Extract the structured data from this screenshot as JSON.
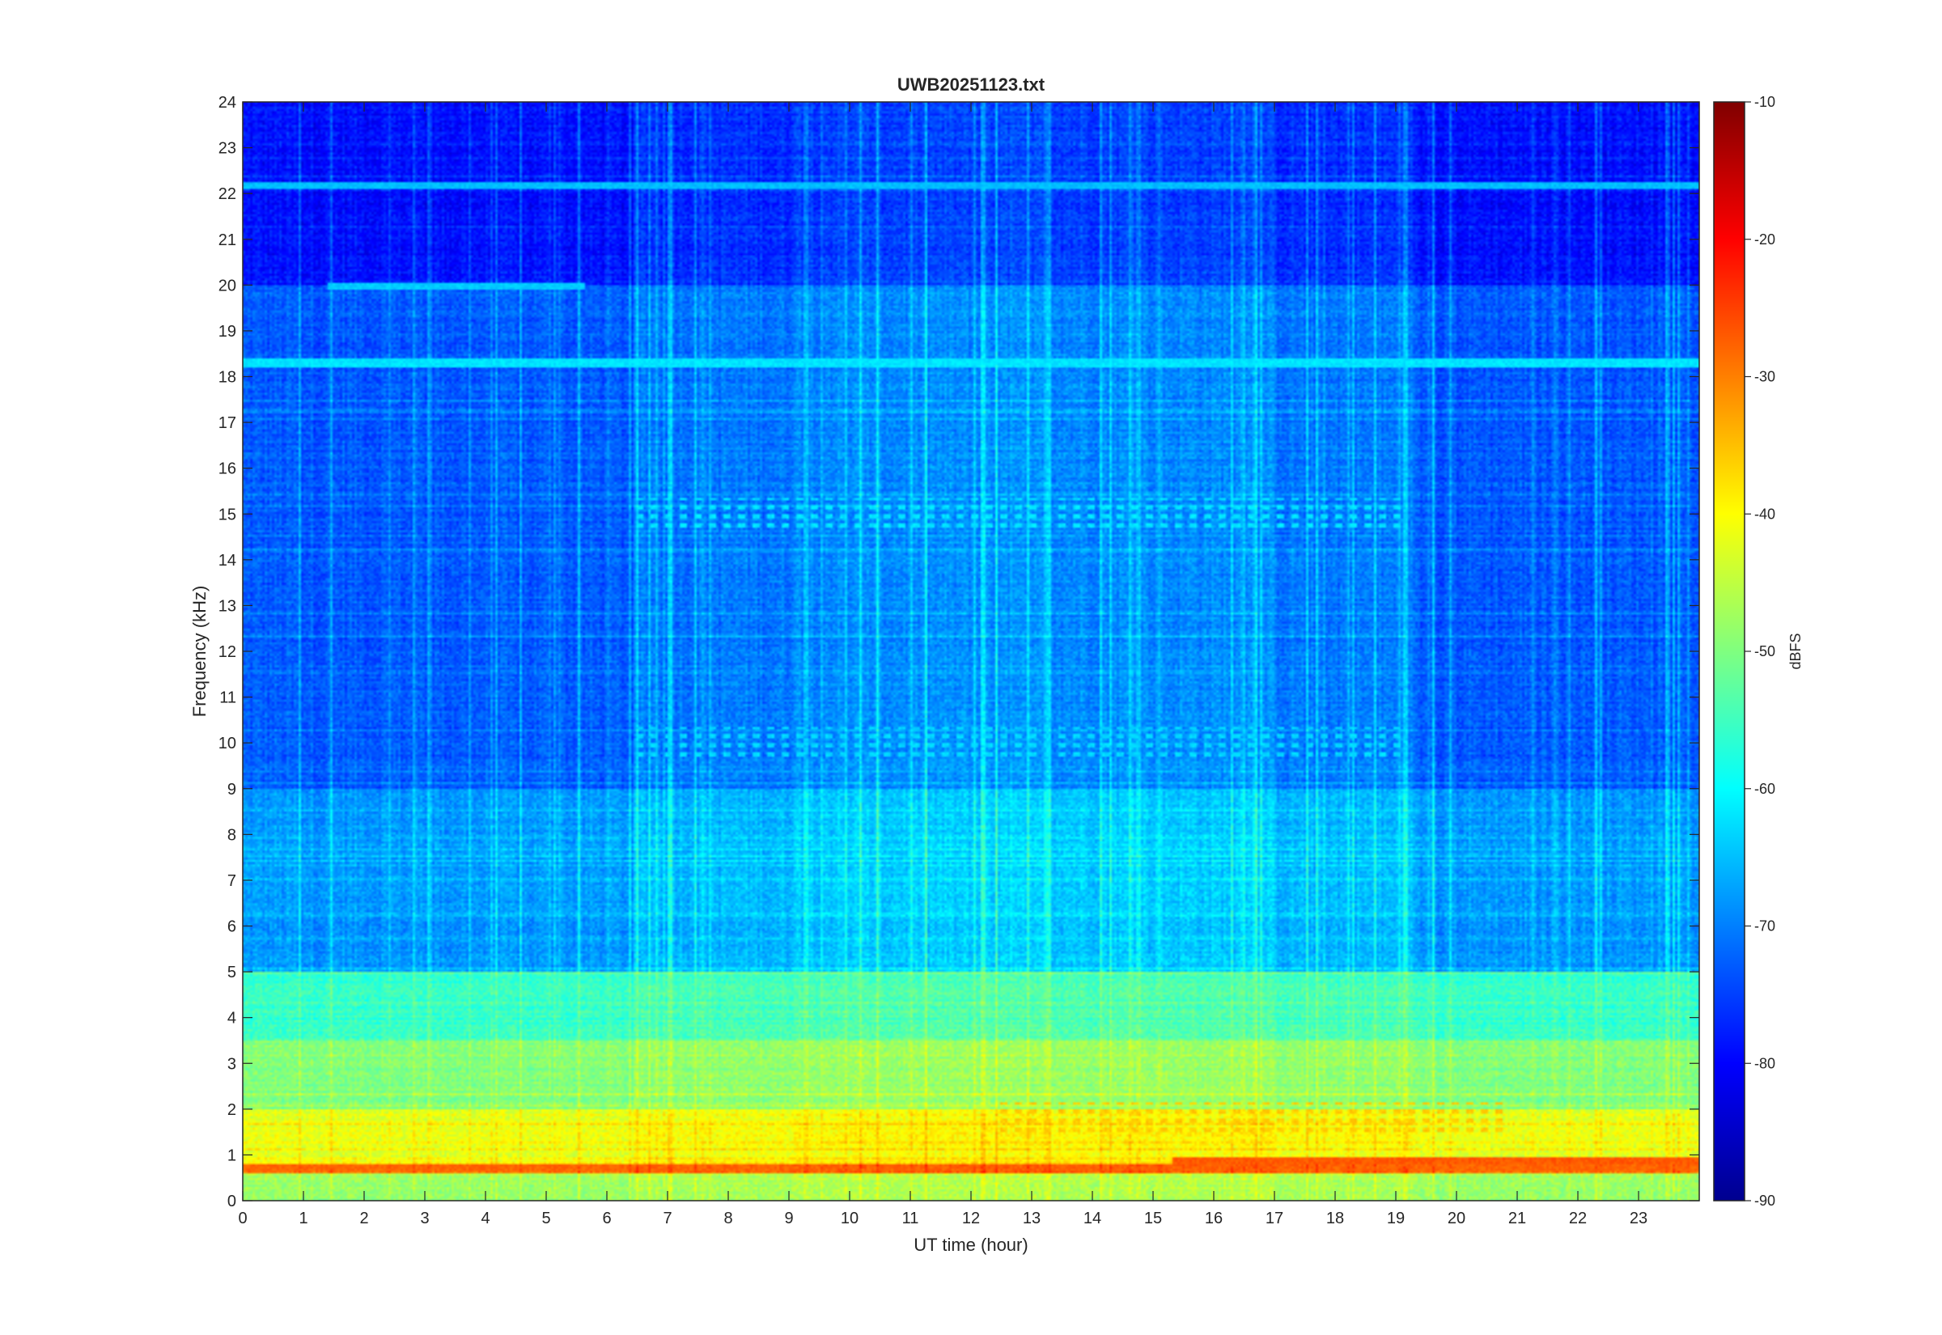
{
  "chart_data": {
    "type": "heatmap",
    "title": "UWB20251123.txt",
    "xlabel": "UT time (hour)",
    "ylabel": "Frequency (kHz)",
    "xlim": [
      0,
      24
    ],
    "ylim": [
      0,
      24
    ],
    "x_ticks": [
      "0",
      "1",
      "2",
      "3",
      "4",
      "5",
      "6",
      "7",
      "8",
      "9",
      "10",
      "11",
      "12",
      "13",
      "14",
      "15",
      "16",
      "17",
      "18",
      "19",
      "20",
      "21",
      "22",
      "23"
    ],
    "y_ticks": [
      "0",
      "1",
      "2",
      "3",
      "4",
      "5",
      "6",
      "7",
      "8",
      "9",
      "10",
      "11",
      "12",
      "13",
      "14",
      "15",
      "16",
      "17",
      "18",
      "19",
      "20",
      "21",
      "22",
      "23",
      "24"
    ],
    "colormap": "jet",
    "colorbar": {
      "label": "dBFS",
      "range": [
        -90,
        -10
      ],
      "ticks": [
        "-10",
        "-20",
        "-30",
        "-40",
        "-50",
        "-60",
        "-70",
        "-80",
        "-90"
      ]
    },
    "background_level_dbfs": [
      {
        "freq_khz": [
          0,
          0.6
        ],
        "level": -48
      },
      {
        "freq_khz": [
          0.6,
          0.8
        ],
        "level": -30
      },
      {
        "freq_khz": [
          0.8,
          2.0
        ],
        "level": -42
      },
      {
        "freq_khz": [
          2.0,
          3.5
        ],
        "level": -50
      },
      {
        "freq_khz": [
          3.5,
          5.0
        ],
        "level": -56
      },
      {
        "freq_khz": [
          5.0,
          9.0
        ],
        "level": -68
      },
      {
        "freq_khz": [
          9.0,
          20.0
        ],
        "level": -73
      },
      {
        "freq_khz": [
          20.0,
          24.0
        ],
        "level": -79
      }
    ],
    "narrowband_lines": [
      {
        "freq_khz": 22.2,
        "level": -65
      },
      {
        "freq_khz": 20.0,
        "level": -64,
        "hours": [
          1.4,
          5.6
        ]
      },
      {
        "freq_khz": 18.3,
        "level": -62
      },
      {
        "freq_khz": 0.7,
        "level": -28
      },
      {
        "freq_khz": 0.85,
        "level": -27,
        "hours": [
          15.3,
          24
        ]
      }
    ],
    "pulse_trains": [
      {
        "freq_khz": 15.0,
        "hours": [
          6.4,
          19.2
        ],
        "level": -62
      },
      {
        "freq_khz": 10.0,
        "hours": [
          6.4,
          19.2
        ],
        "level": -63
      },
      {
        "freq_khz": 1.8,
        "hours": [
          12.4,
          20.8
        ],
        "level": -36
      }
    ]
  }
}
